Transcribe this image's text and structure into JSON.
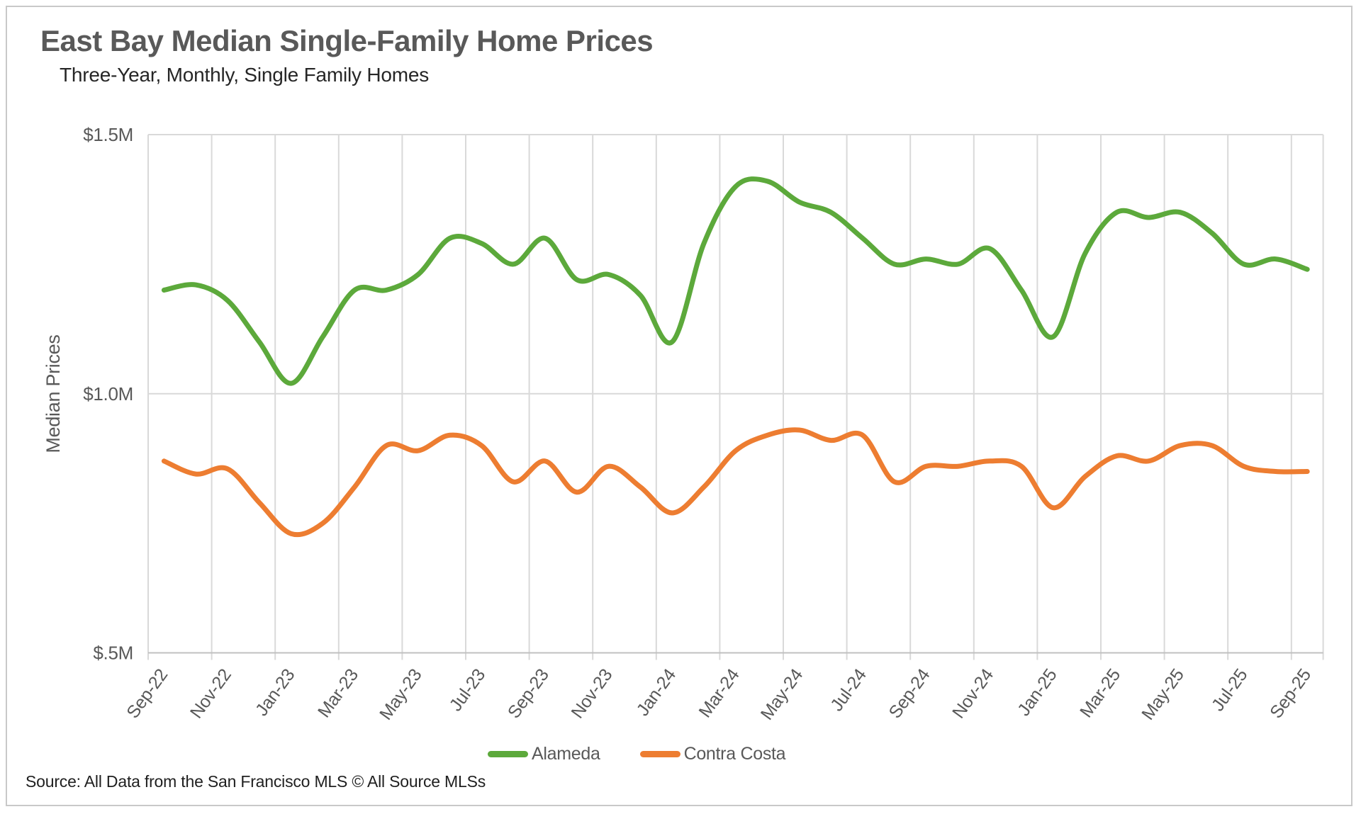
{
  "header": {
    "title": "East Bay Median Single-Family Home Prices",
    "subtitle": "Three-Year, Monthly, Single Family Homes"
  },
  "source_note": "Source: All Data from the San Francisco MLS © All Source MLSs",
  "chart_data": {
    "type": "line",
    "title": "East Bay Median Single-Family Home Prices",
    "subtitle": "Three-Year, Monthly, Single Family Homes",
    "categories": [
      "Sep-22",
      "Oct-22",
      "Nov-22",
      "Dec-22",
      "Jan-23",
      "Feb-23",
      "Mar-23",
      "Apr-23",
      "May-23",
      "Jun-23",
      "Jul-23",
      "Aug-23",
      "Sep-23",
      "Oct-23",
      "Nov-23",
      "Dec-23",
      "Jan-24",
      "Feb-24",
      "Mar-24",
      "Apr-24",
      "May-24",
      "Jun-24",
      "Jul-24",
      "Aug-24",
      "Sep-24",
      "Oct-24",
      "Nov-24",
      "Dec-24",
      "Jan-25",
      "Feb-25",
      "Mar-25",
      "Apr-25",
      "May-25",
      "Jun-25",
      "Jul-25",
      "Aug-25",
      "Sep-25"
    ],
    "series": [
      {
        "name": "Alameda",
        "color": "#5CA93B",
        "values_unit": "USD millions",
        "values": [
          1.2,
          1.21,
          1.18,
          1.1,
          1.02,
          1.11,
          1.2,
          1.2,
          1.23,
          1.3,
          1.29,
          1.25,
          1.3,
          1.22,
          1.23,
          1.19,
          1.1,
          1.29,
          1.4,
          1.41,
          1.37,
          1.35,
          1.3,
          1.25,
          1.26,
          1.25,
          1.28,
          1.2,
          1.11,
          1.27,
          1.35,
          1.34,
          1.35,
          1.31,
          1.25,
          1.26,
          1.24
        ]
      },
      {
        "name": "Contra Costa",
        "color": "#ED7D31",
        "values_unit": "USD millions",
        "values": [
          0.87,
          0.845,
          0.855,
          0.79,
          0.73,
          0.75,
          0.82,
          0.9,
          0.89,
          0.92,
          0.9,
          0.83,
          0.87,
          0.81,
          0.86,
          0.82,
          0.77,
          0.82,
          0.89,
          0.92,
          0.93,
          0.91,
          0.92,
          0.83,
          0.86,
          0.86,
          0.87,
          0.86,
          0.78,
          0.84,
          0.88,
          0.87,
          0.9,
          0.9,
          0.86,
          0.85,
          0.85
        ]
      }
    ],
    "ylabel": "Median Prices",
    "xlabel": "",
    "ylim": [
      0.5,
      1.5
    ],
    "yticks": [
      {
        "value": 1.5,
        "label": "$1.5M"
      },
      {
        "value": 1.0,
        "label": "$1.0M"
      },
      {
        "value": 0.5,
        "label": "$.5M"
      }
    ],
    "x_tick_interval": 2,
    "x_tick_angle_deg": -54,
    "grid": {
      "show_vertical": true,
      "show_horizontal": true,
      "gridline_color": "#D9D9D9",
      "axis_line_color": "#C0C0C0",
      "tick_length": 10
    },
    "axis_text_color": "#595959",
    "line_width": 7,
    "smooth": true,
    "legend_position": "bottom"
  }
}
